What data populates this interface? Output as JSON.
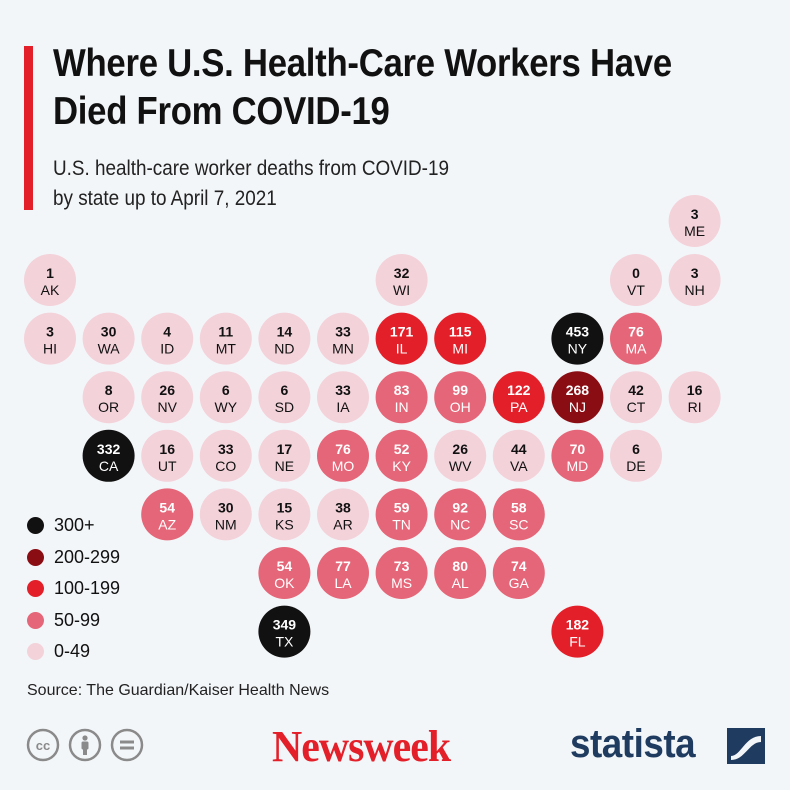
{
  "header": {
    "title": "Where U.S. Health-Care Workers Have Died From COVID-19",
    "subtitle_line1": "U.S. health-care worker deaths from COVID-19",
    "subtitle_line2": "by state up to April 7, 2021"
  },
  "colors": {
    "accent": "#e3202a",
    "bin_300_plus": "#111111",
    "bin_200_299": "#8b0d14",
    "bin_100_199": "#e3202a",
    "bin_50_99": "#e56678",
    "bin_0_49": "#f3d2da",
    "text_dark": "#111111",
    "text_light": "#ffffff"
  },
  "chart_data": {
    "type": "tile-map",
    "title": "Where U.S. Health-Care Workers Have Died From COVID-19",
    "subtitle": "U.S. health-care worker deaths from COVID-19 by state up to April 7, 2021",
    "bins": [
      {
        "label": "300+",
        "min": 300,
        "color": "#111111"
      },
      {
        "label": "200-299",
        "min": 200,
        "color": "#8b0d14"
      },
      {
        "label": "100-199",
        "min": 100,
        "color": "#e3202a"
      },
      {
        "label": "50-99",
        "min": 50,
        "color": "#e56678"
      },
      {
        "label": "0-49",
        "min": 0,
        "color": "#f3d2da"
      }
    ],
    "states": [
      {
        "code": "ME",
        "value": 3,
        "row": 0,
        "col": 11
      },
      {
        "code": "AK",
        "value": 1,
        "row": 1,
        "col": 0
      },
      {
        "code": "WI",
        "value": 32,
        "row": 1,
        "col": 6
      },
      {
        "code": "VT",
        "value": 0,
        "row": 1,
        "col": 10
      },
      {
        "code": "NH",
        "value": 3,
        "row": 1,
        "col": 11
      },
      {
        "code": "HI",
        "value": 3,
        "row": 2,
        "col": 0
      },
      {
        "code": "WA",
        "value": 30,
        "row": 2,
        "col": 1
      },
      {
        "code": "ID",
        "value": 4,
        "row": 2,
        "col": 2
      },
      {
        "code": "MT",
        "value": 11,
        "row": 2,
        "col": 3
      },
      {
        "code": "ND",
        "value": 14,
        "row": 2,
        "col": 4
      },
      {
        "code": "MN",
        "value": 33,
        "row": 2,
        "col": 5
      },
      {
        "code": "IL",
        "value": 171,
        "row": 2,
        "col": 6
      },
      {
        "code": "MI",
        "value": 115,
        "row": 2,
        "col": 7
      },
      {
        "code": "NY",
        "value": 453,
        "row": 2,
        "col": 9
      },
      {
        "code": "MA",
        "value": 76,
        "row": 2,
        "col": 10
      },
      {
        "code": "OR",
        "value": 8,
        "row": 3,
        "col": 1
      },
      {
        "code": "NV",
        "value": 26,
        "row": 3,
        "col": 2
      },
      {
        "code": "WY",
        "value": 6,
        "row": 3,
        "col": 3
      },
      {
        "code": "SD",
        "value": 6,
        "row": 3,
        "col": 4
      },
      {
        "code": "IA",
        "value": 33,
        "row": 3,
        "col": 5
      },
      {
        "code": "IN",
        "value": 83,
        "row": 3,
        "col": 6
      },
      {
        "code": "OH",
        "value": 99,
        "row": 3,
        "col": 7
      },
      {
        "code": "PA",
        "value": 122,
        "row": 3,
        "col": 8
      },
      {
        "code": "NJ",
        "value": 268,
        "row": 3,
        "col": 9
      },
      {
        "code": "CT",
        "value": 42,
        "row": 3,
        "col": 10
      },
      {
        "code": "RI",
        "value": 16,
        "row": 3,
        "col": 11
      },
      {
        "code": "CA",
        "value": 332,
        "row": 4,
        "col": 1
      },
      {
        "code": "UT",
        "value": 16,
        "row": 4,
        "col": 2
      },
      {
        "code": "CO",
        "value": 33,
        "row": 4,
        "col": 3
      },
      {
        "code": "NE",
        "value": 17,
        "row": 4,
        "col": 4
      },
      {
        "code": "MO",
        "value": 76,
        "row": 4,
        "col": 5
      },
      {
        "code": "KY",
        "value": 52,
        "row": 4,
        "col": 6
      },
      {
        "code": "WV",
        "value": 26,
        "row": 4,
        "col": 7
      },
      {
        "code": "VA",
        "value": 44,
        "row": 4,
        "col": 8
      },
      {
        "code": "MD",
        "value": 70,
        "row": 4,
        "col": 9
      },
      {
        "code": "DE",
        "value": 6,
        "row": 4,
        "col": 10
      },
      {
        "code": "AZ",
        "value": 54,
        "row": 5,
        "col": 2
      },
      {
        "code": "NM",
        "value": 30,
        "row": 5,
        "col": 3
      },
      {
        "code": "KS",
        "value": 15,
        "row": 5,
        "col": 4
      },
      {
        "code": "AR",
        "value": 38,
        "row": 5,
        "col": 5
      },
      {
        "code": "TN",
        "value": 59,
        "row": 5,
        "col": 6
      },
      {
        "code": "NC",
        "value": 92,
        "row": 5,
        "col": 7
      },
      {
        "code": "SC",
        "value": 58,
        "row": 5,
        "col": 8
      },
      {
        "code": "OK",
        "value": 54,
        "row": 6,
        "col": 4
      },
      {
        "code": "LA",
        "value": 77,
        "row": 6,
        "col": 5
      },
      {
        "code": "MS",
        "value": 73,
        "row": 6,
        "col": 6
      },
      {
        "code": "AL",
        "value": 80,
        "row": 6,
        "col": 7
      },
      {
        "code": "GA",
        "value": 74,
        "row": 6,
        "col": 8
      },
      {
        "code": "TX",
        "value": 349,
        "row": 7,
        "col": 4
      },
      {
        "code": "FL",
        "value": 182,
        "row": 7,
        "col": 9
      }
    ]
  },
  "footer": {
    "source": "Source: The Guardian/Kaiser Health News",
    "newsweek_logo": "Newsweek",
    "statista_logo": "statista",
    "license_icons": [
      "creative-commons-icon",
      "attribution-icon",
      "no-derivatives-icon"
    ]
  }
}
